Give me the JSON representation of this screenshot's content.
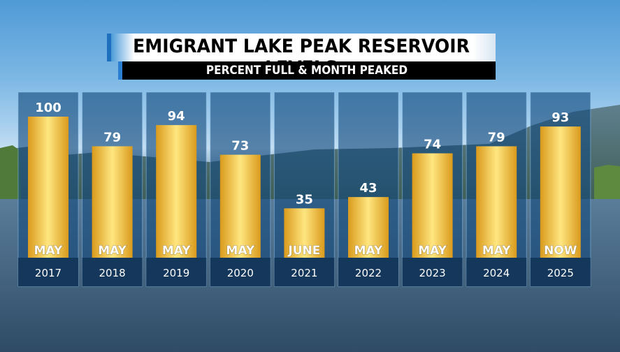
{
  "title": "EMIGRANT LAKE PEAK RESERVOIR LEVELS",
  "subtitle": "PERCENT FULL & MONTH PEAKED",
  "colors": {
    "bar_light": "#ffe680",
    "bar_mid": "#f5c33b",
    "bar_dark": "#d99a1c",
    "panel": "#1a4b7d",
    "title_accent": "#1f6fbf"
  },
  "chart_data": {
    "type": "bar",
    "title": "EMIGRANT LAKE PEAK RESERVOIR LEVELS",
    "subtitle": "PERCENT FULL & MONTH PEAKED",
    "categories": [
      "2017",
      "2018",
      "2019",
      "2020",
      "2021",
      "2022",
      "2023",
      "2024",
      "2025"
    ],
    "values": [
      100,
      79,
      94,
      73,
      35,
      43,
      74,
      79,
      93
    ],
    "month_labels": [
      "MAY",
      "MAY",
      "MAY",
      "MAY",
      "JUNE",
      "MAY",
      "MAY",
      "MAY",
      "NOW"
    ],
    "ylim": [
      0,
      100
    ],
    "grid": false,
    "legend": "none"
  }
}
